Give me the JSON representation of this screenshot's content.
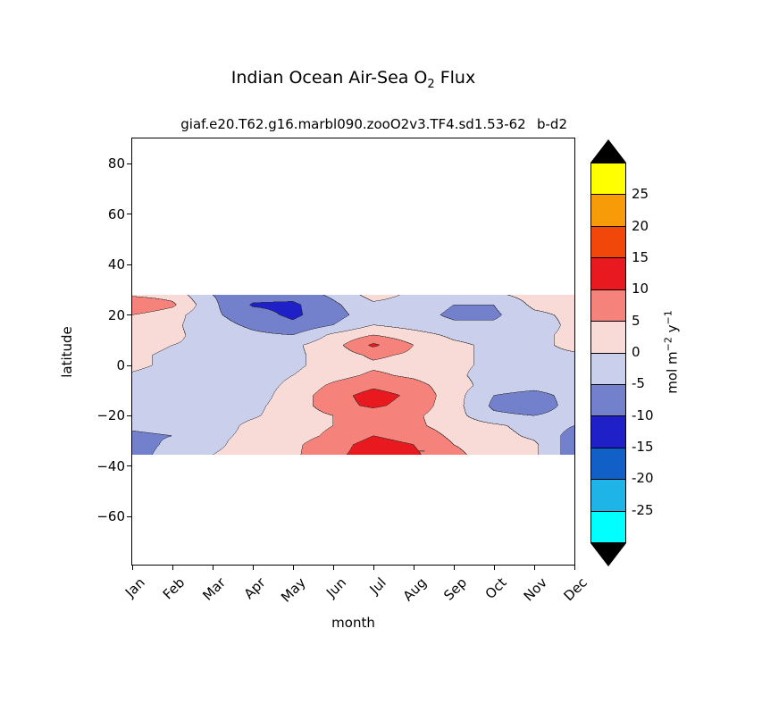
{
  "title": {
    "pre": "Indian Ocean Air-Sea O",
    "sub": "2",
    "post": " Flux"
  },
  "subtitle": {
    "main": "giaf.e20.T62.g16.marbl090.zooO2v3.TF4.sd1.53-62",
    "overlap": "b-d2"
  },
  "axes": {
    "xlabel": "month",
    "ylabel": "latitude",
    "x_tick_labels": [
      "Jan",
      "Feb",
      "Mar",
      "Apr",
      "May",
      "Jun",
      "Jul",
      "Aug",
      "Sep",
      "Oct",
      "Nov",
      "Dec"
    ],
    "y_ticks": [
      {
        "v": 80,
        "label": "80"
      },
      {
        "v": 60,
        "label": "60"
      },
      {
        "v": 40,
        "label": "40"
      },
      {
        "v": 20,
        "label": "20"
      },
      {
        "v": 0,
        "label": "0"
      },
      {
        "v": -20,
        "label": "−20"
      },
      {
        "v": -40,
        "label": "−40"
      },
      {
        "v": -60,
        "label": "−60"
      }
    ]
  },
  "colorbar": {
    "tick_labels": [
      {
        "v": 25,
        "label": "25"
      },
      {
        "v": 20,
        "label": "20"
      },
      {
        "v": 15,
        "label": "15"
      },
      {
        "v": 10,
        "label": "10"
      },
      {
        "v": 5,
        "label": "5"
      },
      {
        "v": 0,
        "label": "0"
      },
      {
        "v": -5,
        "label": "-5"
      },
      {
        "v": -10,
        "label": "-10"
      },
      {
        "v": -15,
        "label": "-15"
      },
      {
        "v": -20,
        "label": "-20"
      },
      {
        "v": -25,
        "label": "-25"
      }
    ],
    "unit": {
      "p1": "mol m",
      "s1": "−2",
      "p2": " y",
      "s2": "−1"
    },
    "arrow_color": "#000000"
  },
  "annotations": {
    "inline_contour_label": "−"
  },
  "chart_data": {
    "type": "heatmap",
    "title": "Indian Ocean Air-Sea O2 Flux",
    "xlabel": "month",
    "ylabel": "latitude",
    "units": "mol m-2 y-1",
    "x_categories": [
      "Jan",
      "Feb",
      "Mar",
      "Apr",
      "May",
      "Jun",
      "Jul",
      "Aug",
      "Sep",
      "Oct",
      "Nov",
      "Dec"
    ],
    "lat_values": [
      28,
      24,
      20,
      16,
      12,
      8,
      4,
      0,
      -4,
      -8,
      -12,
      -16,
      -20,
      -24,
      -28,
      -31.5,
      -35.5
    ],
    "grid": [
      [
        4,
        3,
        -5,
        -8,
        -8,
        -4,
        2,
        -1,
        -2,
        -1,
        2,
        3
      ],
      [
        10,
        6,
        -4,
        -10.5,
        -11,
        -6,
        -1,
        -2,
        -5,
        -5,
        1,
        2
      ],
      [
        5,
        2,
        -4,
        -8,
        -11,
        -7,
        -2,
        -3,
        -6,
        -6,
        -1,
        1
      ],
      [
        3,
        1,
        -3,
        -6,
        -9,
        -5,
        0,
        -2,
        -4,
        -4,
        -2,
        1
      ],
      [
        2,
        1,
        -2,
        -4,
        -5,
        1,
        5,
        2,
        -1,
        -2,
        -1,
        1
      ],
      [
        2,
        0,
        -1,
        -2,
        -1,
        3,
        11,
        5,
        1,
        -1,
        -1,
        1
      ],
      [
        1,
        -1,
        -1,
        -2,
        -1,
        2,
        6,
        4,
        1,
        -1,
        -1,
        -0.5
      ],
      [
        1,
        -1,
        -2,
        -2,
        -1,
        2,
        4,
        3,
        1,
        -1,
        -2,
        -1
      ],
      [
        -0.5,
        -2,
        -2,
        -2,
        0,
        3,
        6,
        4,
        1,
        -2,
        -2,
        -2
      ],
      [
        -1,
        -2,
        -3,
        -2,
        1,
        6,
        9,
        7,
        2,
        -2,
        -3,
        -2
      ],
      [
        -2,
        -3,
        -3,
        -2,
        2,
        8,
        12,
        9,
        2,
        -5,
        -7,
        -3
      ],
      [
        -2,
        -3,
        -3,
        -1,
        2,
        8,
        11,
        8,
        2,
        -6,
        -8,
        -3
      ],
      [
        -3,
        -3,
        -2,
        -0.5,
        2,
        5,
        7,
        6,
        2,
        -4,
        -5,
        -3
      ],
      [
        -4,
        -3,
        -2,
        1,
        3,
        5,
        7,
        6,
        3,
        1,
        -2,
        -5
      ],
      [
        -6,
        -5,
        -1,
        1,
        3,
        6,
        10,
        8,
        4,
        2,
        -1,
        -7
      ],
      [
        -7,
        -4,
        -1,
        2,
        4,
        8,
        12,
        10,
        5,
        3,
        1,
        -8
      ],
      [
        -7,
        -3,
        0,
        2,
        4,
        9,
        12,
        11,
        6,
        3,
        1,
        -8
      ]
    ],
    "levels": [
      -30,
      -25,
      -20,
      -15,
      -10,
      -5,
      0,
      5,
      10,
      15,
      20,
      25,
      30
    ],
    "colors": [
      "#00FFFF",
      "#1FB4E8",
      "#1060C8",
      "#2020C8",
      "#7380CC",
      "#CACFEC",
      "#F8DAD6",
      "#F5837B",
      "#E8191F",
      "#F2470B",
      "#F79B09",
      "#FFFF00"
    ],
    "under_over_color": "#000000",
    "contour_line_color": "#2A2A2A",
    "ylim": [
      -79,
      90
    ],
    "band_lat_extent": [
      -35.5,
      28
    ],
    "background": "#FFFFFF",
    "legend_position": "right-colorbar",
    "grid_lines": false
  }
}
